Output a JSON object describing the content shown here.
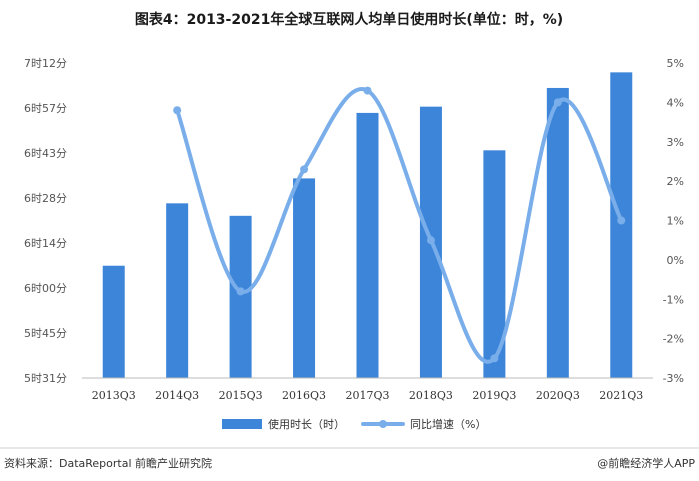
{
  "title": "图表4：2013-2021年全球互联网人均单日使用时长(单位：时，%)",
  "source": "资料来源：DataReportal 前瞻产业研究院",
  "credit": "@前瞻经济学人APP",
  "colors": {
    "bar": "#3d85d9",
    "line": "#79aeea"
  },
  "chart_data": {
    "type": "bar+line",
    "categories": [
      "2013Q3",
      "2014Q3",
      "2015Q3",
      "2016Q3",
      "2017Q3",
      "2018Q3",
      "2019Q3",
      "2020Q3",
      "2021Q3"
    ],
    "series": [
      {
        "name": "使用时长（时）",
        "type": "bar",
        "axis": "left",
        "values_minutes": [
          367,
          387,
          383,
          395,
          416,
          418,
          404,
          424,
          429
        ]
      },
      {
        "name": "同比增速（%）",
        "type": "line",
        "axis": "right",
        "values": [
          null,
          3.8,
          -0.8,
          2.3,
          4.3,
          0.5,
          -2.5,
          4.0,
          1.0
        ]
      }
    ],
    "left_axis": {
      "ticks": [
        "5时31分",
        "5时45分",
        "6时00分",
        "6时14分",
        "6时28分",
        "6时43分",
        "6时57分",
        "7时12分"
      ],
      "ylim_minutes": [
        331,
        432
      ]
    },
    "right_axis": {
      "ticks": [
        "-3%",
        "-2%",
        "-1%",
        "0%",
        "1%",
        "2%",
        "3%",
        "4%",
        "5%"
      ],
      "ylim": [
        -3,
        5
      ]
    },
    "legend_placement": "bottom-center"
  }
}
